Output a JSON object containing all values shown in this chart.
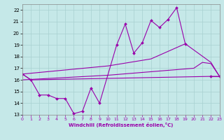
{
  "xlabel": "Windchill (Refroidissement éolien,°C)",
  "xlim": [
    0,
    23
  ],
  "ylim": [
    13,
    22.5
  ],
  "xticks": [
    0,
    1,
    2,
    3,
    4,
    5,
    6,
    7,
    8,
    9,
    10,
    11,
    12,
    13,
    14,
    15,
    16,
    17,
    18,
    19,
    20,
    21,
    22,
    23
  ],
  "yticks": [
    13,
    14,
    15,
    16,
    17,
    18,
    19,
    20,
    21,
    22
  ],
  "background_color": "#c5e8e8",
  "grid_color": "#a8d0d0",
  "line_color": "#9900aa",
  "lines": [
    {
      "x": [
        0,
        1,
        2,
        3,
        4,
        5,
        6,
        7,
        8,
        9,
        11,
        12,
        13,
        14,
        15,
        16,
        17,
        18,
        19,
        20,
        21,
        22,
        23
      ],
      "y": [
        16.5,
        16.0,
        14.7,
        14.7,
        14.4,
        14.4,
        13.1,
        13.3,
        15.3,
        14.0,
        19.0,
        20.8,
        18.3,
        19.2,
        21.1,
        20.5,
        21.2,
        22.2,
        19.1,
        null,
        null,
        16.3,
        16.3
      ],
      "markers": true
    },
    {
      "x": [
        0,
        10,
        15,
        19,
        22,
        23
      ],
      "y": [
        16.5,
        17.2,
        17.8,
        19.1,
        17.5,
        16.3
      ],
      "markers": false
    },
    {
      "x": [
        0,
        10,
        20,
        21,
        22,
        23
      ],
      "y": [
        16.0,
        16.4,
        17.0,
        17.5,
        17.4,
        16.3
      ],
      "markers": false
    },
    {
      "x": [
        0,
        1,
        22,
        23
      ],
      "y": [
        16.5,
        16.0,
        16.3,
        16.3
      ],
      "markers": false
    }
  ]
}
